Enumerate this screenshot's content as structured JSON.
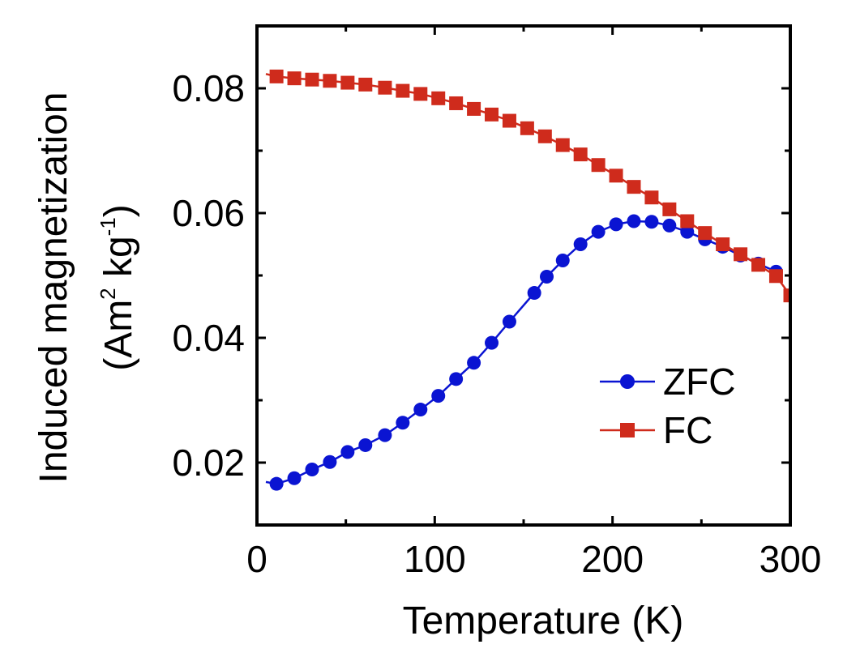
{
  "chart_data": {
    "type": "line",
    "xlabel": "Temperature (K)",
    "ylabel": {
      "line1": "Induced magnetization",
      "line2_prefix": "(Am",
      "line2_sup1": "2",
      "line2_mid": " kg",
      "line2_sup2": "-1",
      "line2_suffix": ")"
    },
    "xlim": [
      0,
      300
    ],
    "ylim": [
      0.01,
      0.09
    ],
    "x_ticks": [
      0,
      100,
      200,
      300
    ],
    "x_tick_labels": [
      "0",
      "100",
      "200",
      "300"
    ],
    "y_ticks": [
      0.02,
      0.04,
      0.06,
      0.08
    ],
    "y_tick_labels": [
      "0.02",
      "0.04",
      "0.06",
      "0.08"
    ],
    "x_minor_ticks": [
      50,
      150,
      250
    ],
    "y_minor_ticks": [
      0.03,
      0.05,
      0.07
    ],
    "grid": false,
    "legend_position": "lower-right",
    "series": [
      {
        "name": "ZFC",
        "color": "#0a14d2",
        "marker": "circle",
        "line_start": [
          5,
          0.0169
        ],
        "x": [
          11,
          21,
          31,
          41,
          51,
          61,
          72,
          82,
          92,
          102,
          112,
          122,
          132,
          142,
          156,
          163,
          172,
          182,
          192,
          202,
          212,
          222,
          232,
          242,
          252,
          262,
          272,
          282,
          292
        ],
        "y": [
          0.0166,
          0.0175,
          0.0189,
          0.0201,
          0.0217,
          0.0228,
          0.0244,
          0.0264,
          0.0285,
          0.0307,
          0.0334,
          0.036,
          0.0392,
          0.0426,
          0.0472,
          0.0498,
          0.0524,
          0.055,
          0.057,
          0.0582,
          0.0587,
          0.0586,
          0.058,
          0.057,
          0.0558,
          0.0546,
          0.0532,
          0.0519,
          0.0506
        ]
      },
      {
        "name": "FC",
        "color": "#cf2b1c",
        "marker": "square",
        "line_start": [
          5,
          0.0823
        ],
        "x": [
          11,
          21,
          31,
          41,
          51,
          61,
          72,
          82,
          92,
          102,
          112,
          122,
          132,
          142,
          152,
          162,
          172,
          182,
          192,
          202,
          212,
          222,
          232,
          242,
          252,
          262,
          272,
          282,
          292,
          300
        ],
        "y": [
          0.0819,
          0.0816,
          0.0814,
          0.0812,
          0.0809,
          0.0806,
          0.0801,
          0.0796,
          0.0791,
          0.0784,
          0.0776,
          0.0767,
          0.0758,
          0.0748,
          0.0736,
          0.0723,
          0.0709,
          0.0694,
          0.0677,
          0.066,
          0.0642,
          0.0625,
          0.0606,
          0.0587,
          0.0568,
          0.055,
          0.0534,
          0.0517,
          0.0499,
          0.0468
        ]
      }
    ]
  }
}
